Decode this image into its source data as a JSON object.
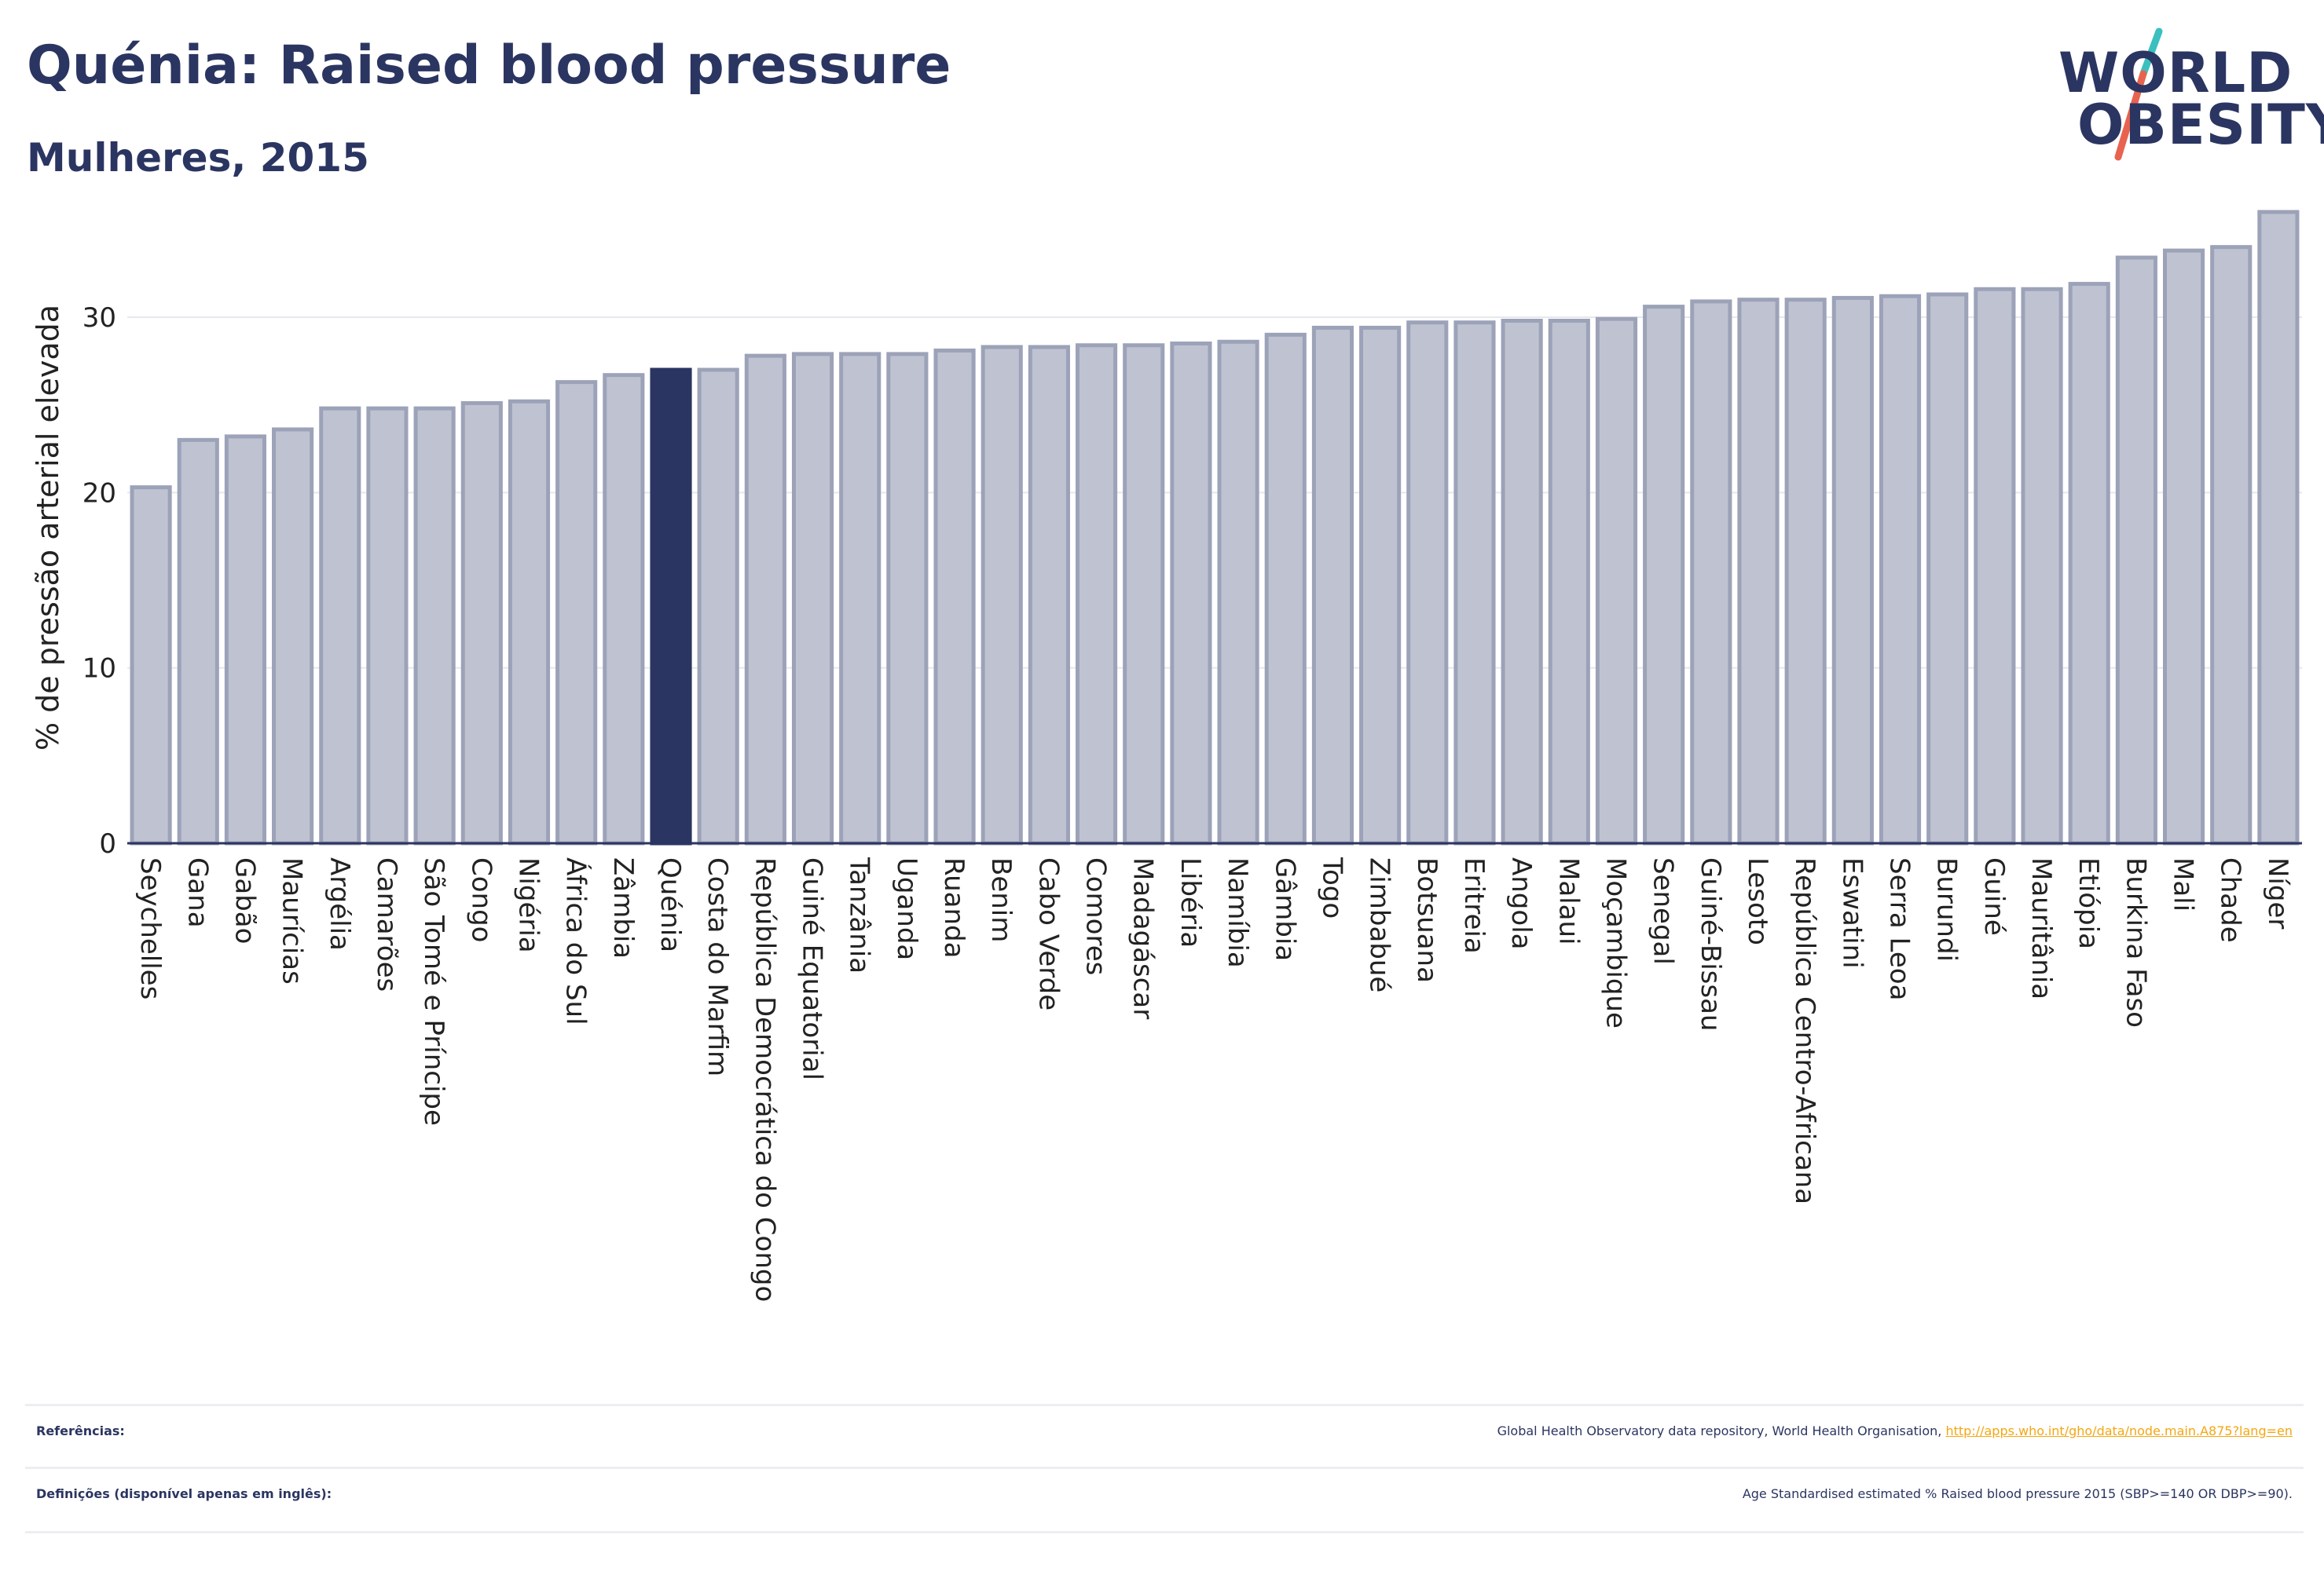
{
  "header": {
    "title": "Quénia: Raised blood pressure",
    "subtitle": "Mulheres, 2015"
  },
  "logo": {
    "line1": "WORLD",
    "line2": "OBESITY",
    "accent_teal": "#3bbfbf",
    "accent_red": "#e8634f"
  },
  "colors": {
    "bar_fill": "#bfc3d1",
    "bar_stroke": "#9ca2b8",
    "highlight_fill": "#2b3561",
    "text": "#2b3561"
  },
  "chart_data": {
    "type": "bar",
    "title": "Quénia: Raised blood pressure",
    "subtitle": "Mulheres, 2015",
    "ylabel": "% de pressão arterial elevada",
    "xlabel": "",
    "ylim": [
      0,
      36
    ],
    "yticks": [
      0,
      10,
      20,
      30
    ],
    "grid": true,
    "highlight": "Quénia",
    "categories": [
      "Seychelles",
      "Gana",
      "Gabão",
      "Maurícias",
      "Argélia",
      "Camarões",
      "São Tomé e Príncipe",
      "Congo",
      "Nigéria",
      "África do Sul",
      "Zâmbia",
      "Quénia",
      "Costa do Marfim",
      "República Democrática do Congo",
      "Guiné Equatorial",
      "Tanzânia",
      "Uganda",
      "Ruanda",
      "Benim",
      "Cabo Verde",
      "Comores",
      "Madagáscar",
      "Libéria",
      "Namíbia",
      "Gâmbia",
      "Togo",
      "Zimbabué",
      "Botsuana",
      "Eritreia",
      "Angola",
      "Malaui",
      "Moçambique",
      "Senegal",
      "Guiné-Bissau",
      "Lesoto",
      "República Centro-Africana",
      "Eswatini",
      "Serra Leoa",
      "Burundi",
      "Guiné",
      "Mauritânia",
      "Etiópia",
      "Burkina Faso",
      "Mali",
      "Chade",
      "Níger"
    ],
    "values": [
      20.3,
      23.0,
      23.2,
      23.6,
      24.8,
      24.8,
      24.8,
      25.1,
      25.2,
      26.3,
      26.7,
      27.0,
      27.0,
      27.8,
      27.9,
      27.9,
      27.9,
      28.1,
      28.3,
      28.3,
      28.4,
      28.4,
      28.5,
      28.6,
      29.0,
      29.4,
      29.4,
      29.7,
      29.7,
      29.8,
      29.8,
      29.9,
      30.6,
      30.9,
      31.0,
      31.0,
      31.1,
      31.2,
      31.3,
      31.6,
      31.6,
      31.9,
      33.4,
      33.8,
      34.0,
      36.0
    ]
  },
  "footer": {
    "references_label": "Referências:",
    "references_text": "Global Health Observatory data repository, World Health Organisation, ",
    "references_link": "http://apps.who.int/gho/data/node.main.A875?lang=en",
    "definitions_label": "Definições (disponível apenas em inglês):",
    "definitions_text": "Age Standardised estimated % Raised blood pressure 2015 (SBP>=140 OR DBP>=90)."
  }
}
